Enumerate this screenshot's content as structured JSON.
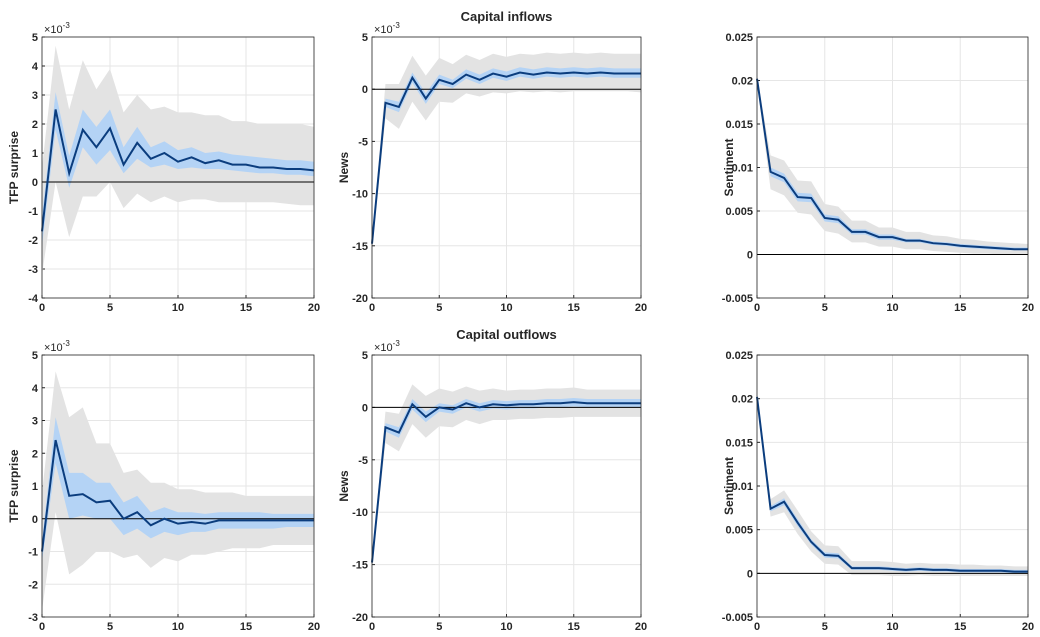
{
  "chart_data": [
    {
      "type": "band-line",
      "ylabel": "TFP surprise",
      "y_base": "×10",
      "y_exponent": "-3",
      "x": [
        0,
        1,
        2,
        3,
        4,
        5,
        6,
        7,
        8,
        9,
        10,
        11,
        12,
        13,
        14,
        15,
        16,
        17,
        18,
        19,
        20
      ],
      "xlim": [
        0,
        20
      ],
      "xticks": [
        0,
        5,
        10,
        15,
        20
      ],
      "ylim": [
        -4,
        5
      ],
      "yticks": [
        -4,
        -3,
        -2,
        -1,
        0,
        1,
        2,
        3,
        4,
        5
      ],
      "grid": true,
      "bands": [
        {
          "color": "#e3e3e3",
          "lower": [
            -3.2,
            0.0,
            -1.9,
            -0.5,
            -0.5,
            0.0,
            -0.9,
            -0.4,
            -0.7,
            -0.5,
            -0.7,
            -0.6,
            -0.6,
            -0.7,
            -0.7,
            -0.7,
            -0.7,
            -0.7,
            -0.75,
            -0.8,
            -0.8
          ],
          "upper": [
            0.5,
            4.7,
            2.5,
            4.2,
            3.2,
            3.9,
            2.4,
            3.0,
            2.5,
            2.6,
            2.4,
            2.4,
            2.3,
            2.3,
            2.1,
            2.1,
            2.0,
            2.0,
            2.0,
            2.0,
            1.9
          ]
        },
        {
          "color": "#b4d3f5",
          "lower": [
            -2.2,
            1.8,
            -0.2,
            1.2,
            0.6,
            1.1,
            0.3,
            0.8,
            0.5,
            0.6,
            0.45,
            0.5,
            0.45,
            0.45,
            0.4,
            0.35,
            0.3,
            0.3,
            0.25,
            0.25,
            0.2
          ],
          "upper": [
            -1.2,
            3.1,
            0.9,
            2.5,
            1.9,
            2.5,
            1.2,
            1.9,
            1.2,
            1.4,
            1.1,
            1.2,
            1.0,
            1.05,
            0.95,
            0.9,
            0.85,
            0.8,
            0.75,
            0.75,
            0.7
          ]
        }
      ],
      "line": {
        "color": "#0b3d7e",
        "values": [
          -1.7,
          2.5,
          0.3,
          1.8,
          1.2,
          1.85,
          0.6,
          1.35,
          0.8,
          1.0,
          0.7,
          0.85,
          0.65,
          0.75,
          0.6,
          0.6,
          0.5,
          0.5,
          0.45,
          0.45,
          0.4
        ]
      }
    },
    {
      "type": "band-line",
      "title": "Capital inflows",
      "ylabel": "News",
      "y_base": "×10",
      "y_exponent": "-3",
      "x": [
        0,
        1,
        2,
        3,
        4,
        5,
        6,
        7,
        8,
        9,
        10,
        11,
        12,
        13,
        14,
        15,
        16,
        17,
        18,
        19,
        20
      ],
      "xlim": [
        0,
        20
      ],
      "xticks": [
        0,
        5,
        10,
        15,
        20
      ],
      "ylim": [
        -20,
        5
      ],
      "yticks": [
        -20,
        -15,
        -10,
        -5,
        0,
        5
      ],
      "grid": true,
      "bands": [
        {
          "color": "#e3e3e3",
          "lower": [
            -15.2,
            -2.8,
            -3.8,
            -1.2,
            -3.0,
            -1.2,
            -1.3,
            -0.4,
            -0.7,
            -0.3,
            -0.4,
            -0.2,
            -0.3,
            -0.2,
            -0.3,
            -0.2,
            -0.2,
            -0.2,
            -0.2,
            -0.2,
            -0.3
          ],
          "upper": [
            -14.4,
            0.5,
            0.5,
            3.2,
            1.3,
            3.0,
            2.4,
            3.3,
            2.8,
            3.4,
            3.1,
            3.4,
            3.3,
            3.5,
            3.4,
            3.5,
            3.4,
            3.5,
            3.4,
            3.4,
            3.4
          ]
        },
        {
          "color": "#b4d3f5",
          "lower": [
            -15.0,
            -1.7,
            -2.2,
            0.6,
            -1.4,
            0.5,
            0.1,
            1.0,
            0.5,
            1.1,
            0.8,
            1.2,
            1.0,
            1.2,
            1.1,
            1.2,
            1.1,
            1.2,
            1.1,
            1.1,
            1.1
          ],
          "upper": [
            -14.6,
            -0.9,
            -1.2,
            1.6,
            -0.4,
            1.4,
            0.9,
            1.9,
            1.4,
            2.0,
            1.7,
            2.1,
            1.9,
            2.1,
            2.0,
            2.1,
            2.0,
            2.1,
            2.0,
            2.0,
            2.0
          ]
        }
      ],
      "line": {
        "color": "#0b3d7e",
        "values": [
          -14.8,
          -1.3,
          -1.7,
          1.1,
          -0.9,
          0.9,
          0.5,
          1.4,
          0.9,
          1.5,
          1.2,
          1.6,
          1.4,
          1.6,
          1.5,
          1.6,
          1.5,
          1.6,
          1.5,
          1.5,
          1.5
        ]
      }
    },
    {
      "type": "band-line",
      "ylabel": "Sentiment",
      "x": [
        0,
        1,
        2,
        3,
        4,
        5,
        6,
        7,
        8,
        9,
        10,
        11,
        12,
        13,
        14,
        15,
        16,
        17,
        18,
        19,
        20
      ],
      "xlim": [
        0,
        20
      ],
      "xticks": [
        0,
        5,
        10,
        15,
        20
      ],
      "ylim": [
        -0.005,
        0.025
      ],
      "yticks": [
        -0.005,
        0,
        0.005,
        0.01,
        0.015,
        0.02,
        0.025
      ],
      "grid": true,
      "bands": [
        {
          "color": "#e3e3e3",
          "lower": [
            0.0198,
            0.0075,
            0.0068,
            0.0048,
            0.0046,
            0.0027,
            0.0024,
            0.0014,
            0.0014,
            0.0009,
            0.0009,
            0.0006,
            0.0006,
            0.0004,
            0.0003,
            0.0002,
            0.0001,
            0.0001,
            0,
            0,
            0
          ],
          "upper": [
            0.0206,
            0.0114,
            0.0108,
            0.0085,
            0.0084,
            0.0058,
            0.0055,
            0.0039,
            0.0039,
            0.0031,
            0.0031,
            0.0026,
            0.0026,
            0.0022,
            0.0021,
            0.0018,
            0.0017,
            0.0015,
            0.0014,
            0.0013,
            0.0012
          ]
        },
        {
          "color": "#b4d3f5",
          "lower": [
            0.0201,
            0.009,
            0.0083,
            0.0061,
            0.006,
            0.0038,
            0.0036,
            0.0023,
            0.0023,
            0.0017,
            0.0017,
            0.0014,
            0.0014,
            0.0011,
            0.001,
            0.0008,
            0.0007,
            0.0006,
            0.0005,
            0.0005,
            0.0005
          ],
          "upper": [
            0.0203,
            0.01,
            0.0093,
            0.0071,
            0.007,
            0.0046,
            0.0044,
            0.0029,
            0.0029,
            0.0023,
            0.0023,
            0.0018,
            0.0018,
            0.0015,
            0.0014,
            0.0012,
            0.0011,
            0.001,
            0.0009,
            0.0008,
            0.0008
          ]
        }
      ],
      "line": {
        "color": "#0b3d7e",
        "values": [
          0.0202,
          0.0095,
          0.0088,
          0.0066,
          0.0065,
          0.0042,
          0.004,
          0.0026,
          0.0026,
          0.002,
          0.002,
          0.0016,
          0.0016,
          0.0013,
          0.0012,
          0.001,
          0.0009,
          0.0008,
          0.0007,
          0.0006,
          0.0006
        ]
      }
    },
    {
      "type": "band-line",
      "ylabel": "TFP surprise",
      "y_base": "×10",
      "y_exponent": "-3",
      "x": [
        0,
        1,
        2,
        3,
        4,
        5,
        6,
        7,
        8,
        9,
        10,
        11,
        12,
        13,
        14,
        15,
        16,
        17,
        18,
        19,
        20
      ],
      "xlim": [
        0,
        20
      ],
      "xticks": [
        0,
        5,
        10,
        15,
        20
      ],
      "ylim": [
        -3,
        5
      ],
      "yticks": [
        -3,
        -2,
        -1,
        0,
        1,
        2,
        3,
        4,
        5
      ],
      "grid": true,
      "bands": [
        {
          "color": "#e3e3e3",
          "lower": [
            -2.8,
            0.2,
            -1.7,
            -1.4,
            -1.0,
            -1.0,
            -1.2,
            -1.1,
            -1.5,
            -1.2,
            -1.3,
            -1.1,
            -1.1,
            -1.0,
            -0.9,
            -0.9,
            -0.9,
            -0.8,
            -0.8,
            -0.8,
            -0.8
          ],
          "upper": [
            0.8,
            4.5,
            3.1,
            3.4,
            2.3,
            2.3,
            1.4,
            1.5,
            1.1,
            1.1,
            0.9,
            0.9,
            0.8,
            0.8,
            0.8,
            0.7,
            0.7,
            0.7,
            0.7,
            0.7,
            0.7
          ]
        },
        {
          "color": "#b4d3f5",
          "lower": [
            -1.3,
            1.7,
            0.0,
            0.1,
            0.0,
            0.0,
            -0.5,
            -0.3,
            -0.6,
            -0.4,
            -0.5,
            -0.4,
            -0.4,
            -0.3,
            -0.3,
            -0.3,
            -0.3,
            -0.3,
            -0.25,
            -0.25,
            -0.25
          ],
          "upper": [
            -0.7,
            3.1,
            1.4,
            1.4,
            1.1,
            1.1,
            0.5,
            0.7,
            0.2,
            0.35,
            0.2,
            0.2,
            0.15,
            0.2,
            0.2,
            0.2,
            0.2,
            0.15,
            0.15,
            0.15,
            0.15
          ]
        }
      ],
      "line": {
        "color": "#0b3d7e",
        "values": [
          -1.0,
          2.4,
          0.7,
          0.75,
          0.5,
          0.55,
          0.0,
          0.2,
          -0.2,
          0.0,
          -0.15,
          -0.1,
          -0.15,
          -0.05,
          -0.05,
          -0.05,
          -0.05,
          -0.05,
          -0.05,
          -0.05,
          -0.05
        ]
      }
    },
    {
      "type": "band-line",
      "title": "Capital outflows",
      "ylabel": "News",
      "y_base": "×10",
      "y_exponent": "-3",
      "x": [
        0,
        1,
        2,
        3,
        4,
        5,
        6,
        7,
        8,
        9,
        10,
        11,
        12,
        13,
        14,
        15,
        16,
        17,
        18,
        19,
        20
      ],
      "xlim": [
        0,
        20
      ],
      "xticks": [
        0,
        5,
        10,
        15,
        20
      ],
      "ylim": [
        -20,
        5
      ],
      "yticks": [
        -20,
        -15,
        -10,
        -5,
        0,
        5
      ],
      "grid": true,
      "bands": [
        {
          "color": "#e3e3e3",
          "lower": [
            -15.2,
            -3.4,
            -4.2,
            -1.6,
            -2.9,
            -1.8,
            -1.9,
            -1.2,
            -1.6,
            -1.2,
            -1.2,
            -1.1,
            -1.1,
            -1.0,
            -1.0,
            -0.9,
            -0.9,
            -0.9,
            -0.9,
            -0.9,
            -0.9
          ],
          "upper": [
            -14.4,
            -0.4,
            -0.6,
            2.2,
            1.1,
            1.8,
            1.5,
            2.0,
            1.6,
            1.8,
            1.6,
            1.7,
            1.7,
            1.8,
            1.8,
            1.9,
            1.7,
            1.7,
            1.7,
            1.7,
            1.7
          ]
        },
        {
          "color": "#b4d3f5",
          "lower": [
            -15.0,
            -2.3,
            -2.9,
            -0.2,
            -1.4,
            -0.4,
            -0.6,
            0.0,
            -0.4,
            -0.1,
            -0.2,
            -0.1,
            -0.1,
            0.0,
            0.0,
            0.1,
            0.0,
            0.0,
            0.0,
            0.0,
            0.0
          ],
          "upper": [
            -14.6,
            -1.5,
            -1.9,
            0.8,
            -0.4,
            0.4,
            0.2,
            0.8,
            0.4,
            0.7,
            0.6,
            0.7,
            0.7,
            0.8,
            0.8,
            0.9,
            0.8,
            0.8,
            0.8,
            0.8,
            0.8
          ]
        }
      ],
      "line": {
        "color": "#0b3d7e",
        "values": [
          -14.8,
          -1.9,
          -2.4,
          0.3,
          -0.9,
          0.0,
          -0.2,
          0.4,
          0.0,
          0.3,
          0.2,
          0.3,
          0.3,
          0.4,
          0.4,
          0.5,
          0.4,
          0.4,
          0.4,
          0.4,
          0.4
        ]
      }
    },
    {
      "type": "band-line",
      "ylabel": "Sentiment",
      "x": [
        0,
        1,
        2,
        3,
        4,
        5,
        6,
        7,
        8,
        9,
        10,
        11,
        12,
        13,
        14,
        15,
        16,
        17,
        18,
        19,
        20
      ],
      "xlim": [
        0,
        20
      ],
      "xticks": [
        0,
        5,
        10,
        15,
        20
      ],
      "ylim": [
        -0.005,
        0.025
      ],
      "yticks": [
        -0.005,
        0,
        0.005,
        0.01,
        0.015,
        0.02,
        0.025
      ],
      "grid": true,
      "bands": [
        {
          "color": "#e3e3e3",
          "lower": [
            0.0198,
            0.0065,
            0.007,
            0.0045,
            0.0025,
            0.0011,
            0.001,
            -0.0002,
            -0.0002,
            -0.0002,
            -0.0003,
            -0.0003,
            -0.0002,
            -0.0003,
            -0.0003,
            -0.0003,
            -0.0003,
            -0.0003,
            -0.0003,
            -0.0003,
            -0.0003
          ],
          "upper": [
            0.0206,
            0.0085,
            0.0095,
            0.0072,
            0.0048,
            0.0032,
            0.0031,
            0.0014,
            0.0014,
            0.0014,
            0.0013,
            0.0011,
            0.0012,
            0.0011,
            0.0011,
            0.001,
            0.001,
            0.0009,
            0.0009,
            0.0008,
            0.0008
          ]
        },
        {
          "color": "#b4d3f5",
          "lower": [
            0.02,
            0.0071,
            0.0078,
            0.0054,
            0.0033,
            0.0018,
            0.0017,
            0.0004,
            0.0004,
            0.0004,
            0.0003,
            0.0002,
            0.0003,
            0.0002,
            0.0002,
            0.0001,
            0.0001,
            0.0001,
            0.0001,
            0,
            0
          ],
          "upper": [
            0.0204,
            0.0077,
            0.0086,
            0.0062,
            0.0039,
            0.0024,
            0.0023,
            0.0008,
            0.0008,
            0.0008,
            0.0007,
            0.0006,
            0.0007,
            0.0006,
            0.0006,
            0.0005,
            0.0005,
            0.0005,
            0.0005,
            0.0004,
            0.0004
          ]
        }
      ],
      "line": {
        "color": "#0b3d7e",
        "values": [
          0.0202,
          0.0074,
          0.0082,
          0.0058,
          0.0036,
          0.0021,
          0.002,
          0.0006,
          0.0006,
          0.0006,
          0.0005,
          0.0004,
          0.0005,
          0.0004,
          0.0004,
          0.0003,
          0.0003,
          0.0003,
          0.0003,
          0.0002,
          0.0002
        ]
      }
    }
  ]
}
